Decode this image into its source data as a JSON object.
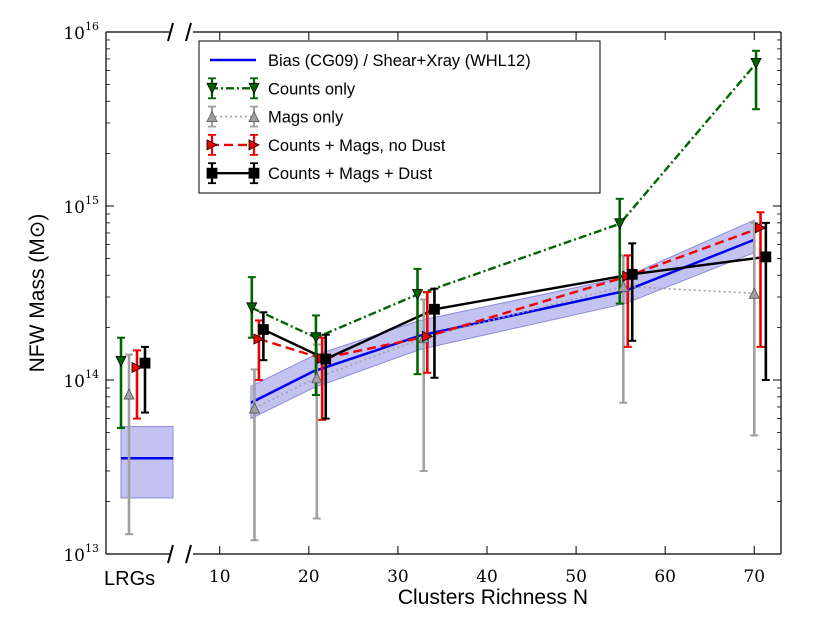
{
  "chart_data": {
    "type": "line",
    "xlabel": "Clusters Richness N",
    "ylabel": "NFW Mass (M⊙)",
    "xlim": [
      7,
      73
    ],
    "ylim": [
      10000000000000.0,
      1e+16
    ],
    "yscale": "log",
    "x_ticks": [
      10,
      20,
      30,
      40,
      50,
      60,
      70
    ],
    "y_ticks": [
      {
        "value": 10000000000000.0,
        "base": "10",
        "exp": "13"
      },
      {
        "value": 100000000000000.0,
        "base": "10",
        "exp": "14"
      },
      {
        "value": 1000000000000000.0,
        "base": "10",
        "exp": "15"
      },
      {
        "value": 1e+16,
        "base": "10",
        "exp": "16"
      }
    ],
    "lrg_label": "LRGs",
    "legend_position": "top-left",
    "band": {
      "name": "Bias (CG09) / Shear+Xray (WHL12)",
      "color": "#0000ee",
      "fill": "#b8b8f0",
      "x": [
        13.5,
        20.5,
        32.5,
        55.5,
        70
      ],
      "center": [
        74000000000000.0,
        112000000000000.0,
        180000000000000.0,
        325000000000000.0,
        640000000000000.0
      ],
      "lower": [
        60000000000000.0,
        90000000000000.0,
        150000000000000.0,
        275000000000000.0,
        540000000000000.0
      ],
      "upper": [
        92000000000000.0,
        138000000000000.0,
        220000000000000.0,
        390000000000000.0,
        830000000000000.0
      ]
    },
    "lrg_band": {
      "center": 35500000000000.0,
      "lower": 21000000000000.0,
      "upper": 54000000000000.0
    },
    "series": [
      {
        "name": "Counts only",
        "color": "#006400",
        "dash": "8,3,2,3",
        "marker": "triangle-down",
        "x": [
          13.6,
          20.8,
          32.2,
          54.9,
          70.2
        ],
        "y": [
          260000000000000.0,
          175000000000000.0,
          310000000000000.0,
          790000000000000.0,
          6600000000000000.0
        ],
        "yerr_low": [
          175000000000000.0,
          82000000000000.0,
          108000000000000.0,
          275000000000000.0,
          3600000000000000.0
        ],
        "yerr_high": [
          390000000000000.0,
          235000000000000.0,
          435000000000000.0,
          1100000000000000.0,
          7800000000000000.0
        ],
        "lrg": {
          "y": 128000000000000.0,
          "low": 53000000000000.0,
          "high": 175000000000000.0
        }
      },
      {
        "name": "Mags only",
        "color": "#8c8c8c",
        "dash": "2,3",
        "marker": "triangle-up",
        "x": [
          13.9,
          20.9,
          32.9,
          55.3,
          70.0
        ],
        "y": [
          69000000000000.0,
          103000000000000.0,
          175000000000000.0,
          345000000000000.0,
          315000000000000.0
        ],
        "yerr_low": [
          12000000000000.0,
          16000000000000.0,
          30000000000000.0,
          74000000000000.0,
          48000000000000.0
        ],
        "yerr_high": [
          115000000000000.0,
          160000000000000.0,
          290000000000000.0,
          520000000000000.0,
          800000000000000.0
        ],
        "lrg": {
          "y": 83000000000000.0,
          "low": 13000000000000.0,
          "high": 140000000000000.0
        }
      },
      {
        "name": "Counts + Mags, no Dust",
        "color": "#ee0000",
        "dash": "9,5",
        "marker": "triangle-right",
        "x": [
          14.4,
          21.5,
          33.3,
          55.8,
          70.7
        ],
        "y": [
          172000000000000.0,
          133000000000000.0,
          178000000000000.0,
          395000000000000.0,
          750000000000000.0
        ],
        "yerr_low": [
          100000000000000.0,
          59000000000000.0,
          110000000000000.0,
          155000000000000.0,
          155000000000000.0
        ],
        "yerr_high": [
          220000000000000.0,
          175000000000000.0,
          320000000000000.0,
          520000000000000.0,
          920000000000000.0
        ],
        "lrg": {
          "y": 118000000000000.0,
          "low": 60000000000000.0,
          "high": 148000000000000.0
        }
      },
      {
        "name": "Counts + Mags + Dust",
        "color": "#000000",
        "dash": "",
        "marker": "square",
        "x": [
          14.9,
          21.9,
          34.1,
          56.3,
          71.3
        ],
        "y": [
          195000000000000.0,
          132000000000000.0,
          255000000000000.0,
          405000000000000.0,
          510000000000000.0
        ],
        "yerr_low": [
          130000000000000.0,
          60000000000000.0,
          103000000000000.0,
          168000000000000.0,
          100000000000000.0
        ],
        "yerr_high": [
          245000000000000.0,
          182000000000000.0,
          335000000000000.0,
          610000000000000.0,
          800000000000000.0
        ],
        "lrg": {
          "y": 125000000000000.0,
          "low": 65000000000000.0,
          "high": 155000000000000.0
        }
      }
    ]
  }
}
